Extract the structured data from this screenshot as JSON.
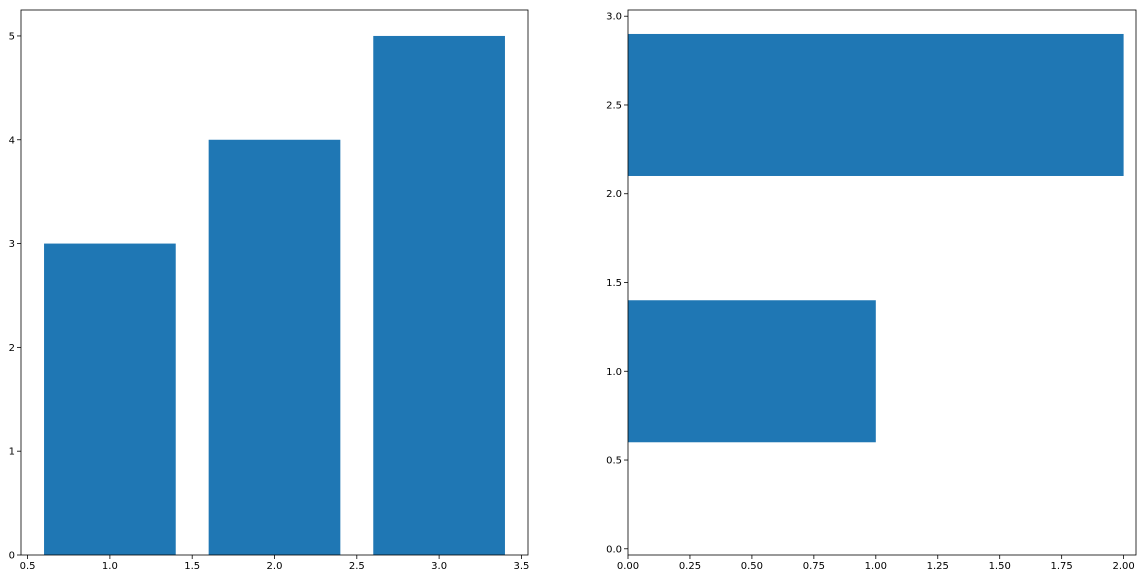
{
  "chart_data": [
    {
      "type": "bar",
      "orientation": "vertical",
      "x": [
        1,
        2,
        3
      ],
      "values": [
        3,
        4,
        5
      ],
      "bar_width": 0.8,
      "xlim": [
        0.46,
        3.54
      ],
      "ylim": [
        0,
        5.25
      ],
      "xticks": [
        "0.5",
        "1.0",
        "1.5",
        "2.0",
        "2.5",
        "3.0",
        "3.5"
      ],
      "yticks": [
        "0",
        "1",
        "2",
        "3",
        "4",
        "5"
      ],
      "grid": false,
      "color": "#1f77b4"
    },
    {
      "type": "bar",
      "orientation": "horizontal",
      "y": [
        1,
        2.5
      ],
      "values": [
        1,
        2
      ],
      "bar_height": 0.8,
      "xlim": [
        0,
        2.05
      ],
      "ylim": [
        -0.035,
        3.035
      ],
      "xticks": [
        "0.00",
        "0.25",
        "0.50",
        "0.75",
        "1.00",
        "1.25",
        "1.50",
        "1.75",
        "2.00"
      ],
      "yticks": [
        "0.0",
        "0.5",
        "1.0",
        "1.5",
        "2.0",
        "2.5",
        "3.0"
      ],
      "grid": false,
      "color": "#1f77b4"
    }
  ]
}
